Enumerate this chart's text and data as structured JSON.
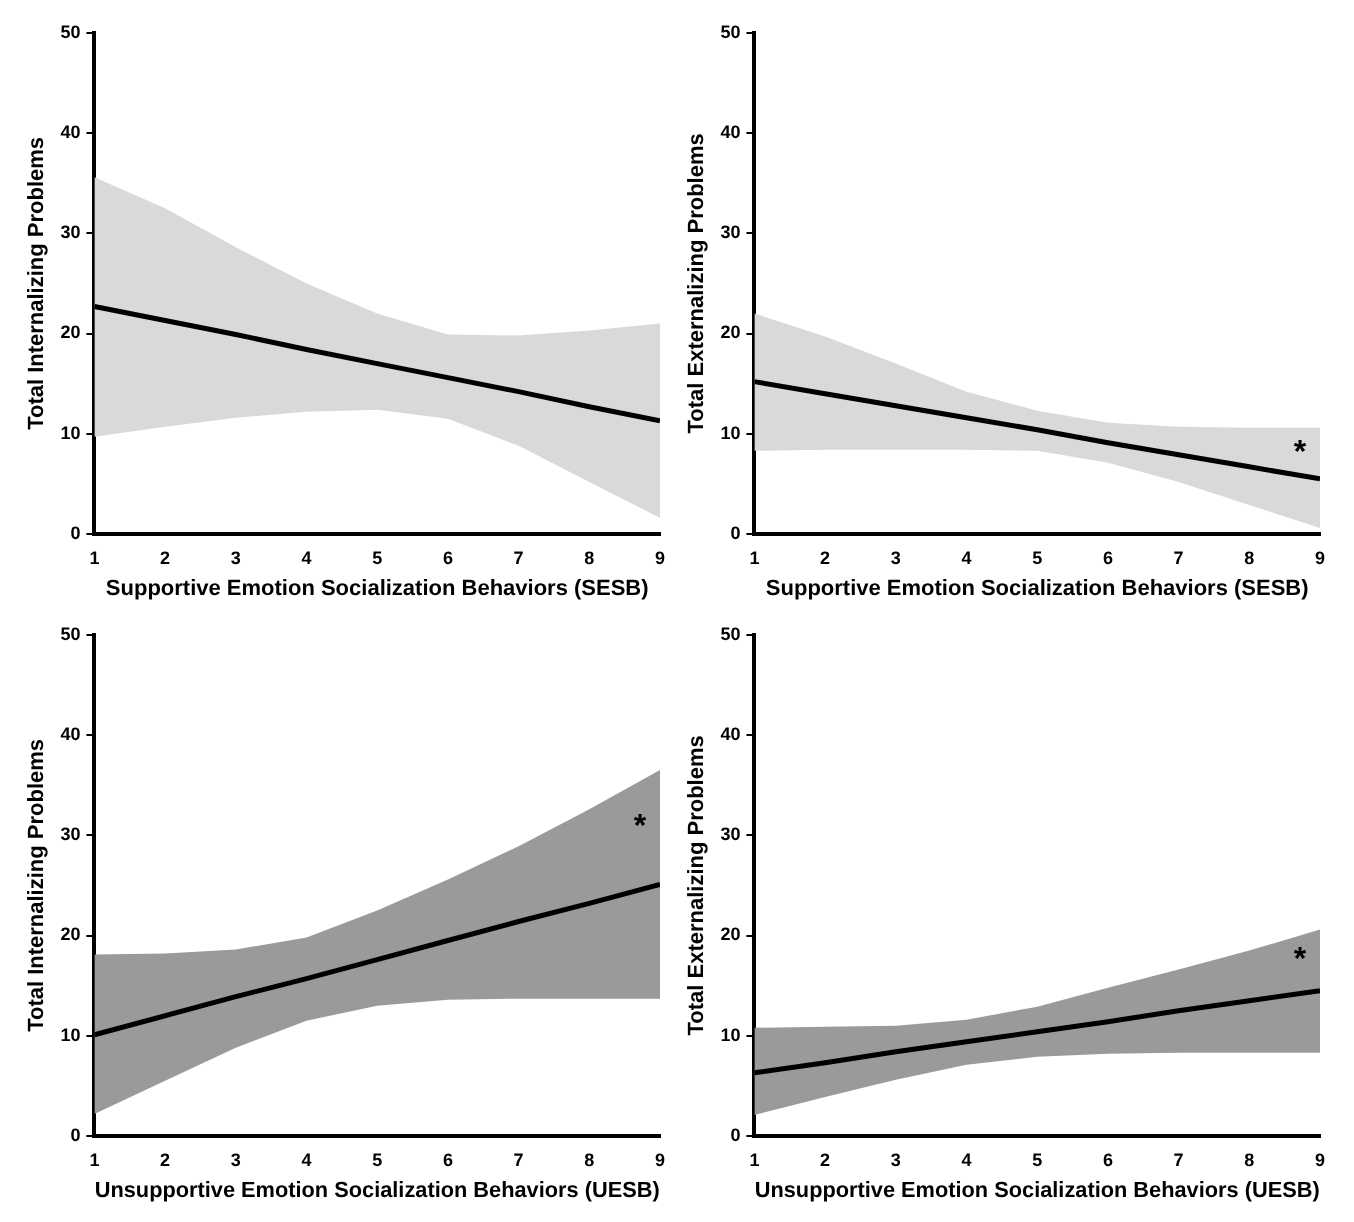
{
  "chart_data": [
    {
      "type": "line",
      "xlabel": "Supportive Emotion Socialization Behaviors (SESB)",
      "ylabel": "Total Internalizing Problems",
      "x": [
        1,
        2,
        3,
        4,
        5,
        6,
        7,
        8,
        9
      ],
      "xlim": [
        1,
        9
      ],
      "xticks": [
        1,
        2,
        3,
        4,
        5,
        6,
        7,
        8,
        9
      ],
      "ylim": [
        0,
        50
      ],
      "yticks": [
        0,
        10,
        20,
        30,
        40,
        50
      ],
      "marker": "none",
      "series": [
        {
          "color": "#000000",
          "values": [
            22.7,
            21.3,
            19.9,
            18.4,
            17.0,
            15.6,
            14.2,
            12.7,
            11.3
          ],
          "lower": [
            9.7,
            10.7,
            11.6,
            12.2,
            12.4,
            11.5,
            8.8,
            5.2,
            1.6
          ],
          "upper": [
            35.6,
            32.5,
            28.6,
            25,
            22,
            19.9,
            19.8,
            20.3,
            21
          ]
        }
      ]
    },
    {
      "type": "line",
      "xlabel": "Supportive Emotion Socialization Behaviors (SESB)",
      "ylabel": "Total Externalizing Problems",
      "x": [
        1,
        2,
        3,
        4,
        5,
        6,
        7,
        8,
        9
      ],
      "xlim": [
        1,
        9
      ],
      "xticks": [
        1,
        2,
        3,
        4,
        5,
        6,
        7,
        8,
        9
      ],
      "ylim": [
        0,
        50
      ],
      "yticks": [
        0,
        10,
        20,
        30,
        40,
        50
      ],
      "marker": "none",
      "annotations": [
        "*"
      ],
      "series": [
        {
          "color": "#000000",
          "values": [
            15.2,
            14.0,
            12.8,
            11.6,
            10.4,
            9.1,
            7.9,
            6.7,
            5.5
          ],
          "lower": [
            8.3,
            8.4,
            8.4,
            8.4,
            8.3,
            7.1,
            5.2,
            2.9,
            0.6
          ],
          "upper": [
            22,
            19.7,
            17,
            14.2,
            12.3,
            11.1,
            10.7,
            10.6,
            10.6
          ]
        }
      ]
    },
    {
      "type": "line",
      "xlabel": "Unsupportive Emotion Socialization Behaviors (UESB)",
      "ylabel": "Total Internalizing Problems",
      "x": [
        1,
        2,
        3,
        4,
        5,
        6,
        7,
        8,
        9
      ],
      "xlim": [
        1,
        9
      ],
      "xticks": [
        1,
        2,
        3,
        4,
        5,
        6,
        7,
        8,
        9
      ],
      "ylim": [
        0,
        50
      ],
      "yticks": [
        0,
        10,
        20,
        30,
        40,
        50
      ],
      "marker": "none",
      "annotations": [
        "*"
      ],
      "series": [
        {
          "color": "#000000",
          "values": [
            10.1,
            12.0,
            13.9,
            15.7,
            17.6,
            19.5,
            21.4,
            23.2,
            25.1
          ],
          "lower": [
            2.2,
            5.5,
            8.8,
            11.5,
            13,
            13.6,
            13.7,
            13.7,
            13.7
          ],
          "upper": [
            18.1,
            18.2,
            18.6,
            19.8,
            22.5,
            25.6,
            28.9,
            32.6,
            36.5
          ]
        }
      ]
    },
    {
      "type": "line",
      "xlabel": "Unsupportive Emotion Socialization Behaviors (UESB)",
      "ylabel": "Total Externalizing Problems",
      "x": [
        1,
        2,
        3,
        4,
        5,
        6,
        7,
        8,
        9
      ],
      "xlim": [
        1,
        9
      ],
      "xticks": [
        1,
        2,
        3,
        4,
        5,
        6,
        7,
        8,
        9
      ],
      "ylim": [
        0,
        50
      ],
      "yticks": [
        0,
        10,
        20,
        30,
        40,
        50
      ],
      "marker": "none",
      "annotations": [
        "*"
      ],
      "series": [
        {
          "color": "#000000",
          "values": [
            6.3,
            7.3,
            8.4,
            9.4,
            10.4,
            11.4,
            12.5,
            13.5,
            14.5
          ],
          "lower": [
            2.1,
            3.9,
            5.6,
            7.1,
            7.9,
            8.2,
            8.3,
            8.3,
            8.3
          ],
          "upper": [
            10.8,
            10.9,
            11.0,
            11.6,
            12.9,
            14.8,
            16.6,
            18.5,
            20.6
          ]
        }
      ]
    }
  ]
}
